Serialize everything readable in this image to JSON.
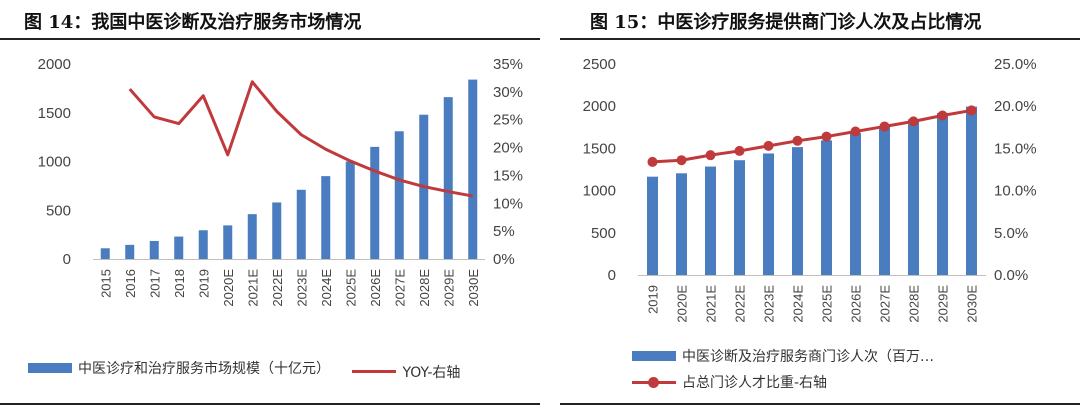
{
  "colors": {
    "bar": "#4a7cc0",
    "line": "#c0393b"
  },
  "left_title": "图 14：我国中医诊断及治疗服务市场情况",
  "right_title": "图 15：中医诊疗服务提供商门诊人次及占比情况",
  "chart_data": [
    {
      "type": "bar",
      "title": "图 14：我国中医诊断及治疗服务市场情况",
      "categories": [
        "2015",
        "2016",
        "2017",
        "2018",
        "2019",
        "2020E",
        "2021E",
        "2022E",
        "2023E",
        "2024E",
        "2025E",
        "2026E",
        "2027E",
        "2028E",
        "2029E",
        "2030E"
      ],
      "ylim": [
        0,
        2000
      ],
      "y_ticks": [
        "0",
        "500",
        "1000",
        "1500",
        "2000"
      ],
      "y2lim": [
        0,
        0.35
      ],
      "y2_ticks": [
        "0%",
        "5%",
        "10%",
        "15%",
        "20%",
        "25%",
        "30%",
        "35%"
      ],
      "grid": false,
      "legend_position": "bottom",
      "series": [
        {
          "name": "中医诊疗和治疗服务市场规模（十亿元）",
          "kind": "bar",
          "axis": "left",
          "values": [
            110,
            145,
            185,
            230,
            295,
            345,
            460,
            580,
            710,
            850,
            1000,
            1150,
            1310,
            1480,
            1660,
            1840
          ]
        },
        {
          "name": "YOY-右轴",
          "kind": "line",
          "axis": "right",
          "values": [
            null,
            0.305,
            0.255,
            0.243,
            0.293,
            0.187,
            0.318,
            0.265,
            0.223,
            0.197,
            0.176,
            0.158,
            0.142,
            0.13,
            0.121,
            0.113
          ]
        }
      ]
    },
    {
      "type": "bar",
      "title": "图 15：中医诊疗服务提供商门诊人次及占比情况",
      "categories": [
        "2019",
        "2020E",
        "2021E",
        "2022E",
        "2023E",
        "2024E",
        "2025E",
        "2026E",
        "2027E",
        "2028E",
        "2029E",
        "2030E"
      ],
      "ylim": [
        0,
        2500
      ],
      "y_ticks": [
        "0",
        "500",
        "1000",
        "1500",
        "2000",
        "2500"
      ],
      "y2lim": [
        0,
        0.25
      ],
      "y2_ticks": [
        "0.0%",
        "5.0%",
        "10.0%",
        "15.0%",
        "20.0%",
        "25.0%"
      ],
      "grid": false,
      "legend_position": "bottom",
      "series": [
        {
          "name": "中医诊断及治疗服务商门诊人次（百万…",
          "kind": "bar",
          "axis": "left",
          "values": [
            1165,
            1205,
            1285,
            1360,
            1440,
            1515,
            1595,
            1680,
            1760,
            1845,
            1920,
            1995
          ]
        },
        {
          "name": "占总门诊人才比重-右轴",
          "kind": "line",
          "axis": "right",
          "values": [
            0.134,
            0.136,
            0.142,
            0.147,
            0.153,
            0.159,
            0.164,
            0.17,
            0.176,
            0.182,
            0.189,
            0.195
          ]
        }
      ]
    }
  ]
}
